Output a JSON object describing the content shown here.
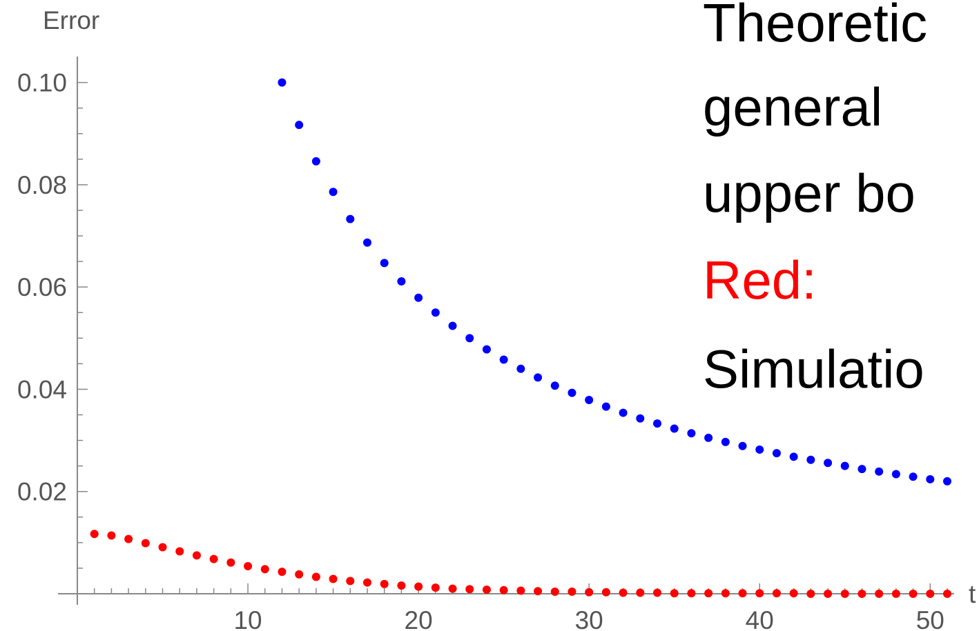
{
  "chart_data": {
    "type": "scatter",
    "title": "",
    "xlabel": "t",
    "ylabel": "Error",
    "xlim": [
      0,
      51
    ],
    "ylim": [
      0,
      0.104
    ],
    "x_ticks": [
      "10",
      "20",
      "30",
      "40",
      "50"
    ],
    "y_ticks": [
      "0.02",
      "0.04",
      "0.06",
      "0.08",
      "0.10"
    ],
    "grid": false,
    "series": [
      {
        "color": "#0000ff",
        "points": [
          [
            12,
            0.1
          ],
          [
            13,
            0.0917
          ],
          [
            14,
            0.0846
          ],
          [
            15,
            0.0786
          ],
          [
            16,
            0.0733
          ],
          [
            17,
            0.0687
          ],
          [
            18,
            0.0647
          ],
          [
            19,
            0.0611
          ],
          [
            20,
            0.0579
          ],
          [
            21,
            0.055
          ],
          [
            22,
            0.0524
          ],
          [
            23,
            0.05
          ],
          [
            24,
            0.0478
          ],
          [
            25,
            0.0458
          ],
          [
            26,
            0.044
          ],
          [
            27,
            0.0423
          ],
          [
            28,
            0.0407
          ],
          [
            29,
            0.0393
          ],
          [
            30,
            0.0379
          ],
          [
            31,
            0.0366
          ],
          [
            32,
            0.0354
          ],
          [
            33,
            0.0343
          ],
          [
            34,
            0.0333
          ],
          [
            35,
            0.0323
          ],
          [
            36,
            0.0314
          ],
          [
            37,
            0.0305
          ],
          [
            38,
            0.0297
          ],
          [
            39,
            0.0289
          ],
          [
            40,
            0.0282
          ],
          [
            41,
            0.0275
          ],
          [
            42,
            0.0268
          ],
          [
            43,
            0.0262
          ],
          [
            44,
            0.0256
          ],
          [
            45,
            0.025
          ],
          [
            46,
            0.0244
          ],
          [
            47,
            0.0239
          ],
          [
            48,
            0.0234
          ],
          [
            49,
            0.0229
          ],
          [
            50,
            0.0224
          ],
          [
            51,
            0.022
          ]
        ]
      },
      {
        "color": "#ff0000",
        "points": [
          [
            1,
            0.0117
          ],
          [
            2,
            0.0114
          ],
          [
            3,
            0.0107
          ],
          [
            4,
            0.0099
          ],
          [
            5,
            0.0091
          ],
          [
            6,
            0.0083
          ],
          [
            7,
            0.0075
          ],
          [
            8,
            0.0068
          ],
          [
            9,
            0.0061
          ],
          [
            10,
            0.0054
          ],
          [
            11,
            0.0048
          ],
          [
            12,
            0.0043
          ],
          [
            13,
            0.0038
          ],
          [
            14,
            0.0033
          ],
          [
            15,
            0.0029
          ],
          [
            16,
            0.0025
          ],
          [
            17,
            0.0022
          ],
          [
            18,
            0.0019
          ],
          [
            19,
            0.0016
          ],
          [
            20,
            0.0014
          ],
          [
            21,
            0.0012
          ],
          [
            22,
            0.001
          ],
          [
            23,
            0.0009
          ],
          [
            24,
            0.0008
          ],
          [
            25,
            0.0007
          ],
          [
            26,
            0.0006
          ],
          [
            27,
            0.0005
          ],
          [
            28,
            0.0004
          ],
          [
            29,
            0.0004
          ],
          [
            30,
            0.0003
          ],
          [
            31,
            0.0003
          ],
          [
            32,
            0.0002
          ],
          [
            33,
            0.0002
          ],
          [
            34,
            0.0002
          ],
          [
            35,
            0.0001
          ],
          [
            36,
            0.0001
          ],
          [
            37,
            0.0001
          ],
          [
            38,
            0.0001
          ],
          [
            39,
            0.0001
          ],
          [
            40,
            0.0001
          ],
          [
            41,
            0.0001
          ],
          [
            42,
            0.0001
          ],
          [
            43,
            0.0
          ],
          [
            44,
            0.0
          ],
          [
            45,
            0.0
          ],
          [
            46,
            0.0
          ],
          [
            47,
            0.0
          ],
          [
            48,
            0.0
          ],
          [
            49,
            0.0
          ],
          [
            50,
            0.0
          ],
          [
            51,
            0.0
          ]
        ]
      }
    ]
  },
  "annotation": {
    "line1": "Theoretic",
    "line2": "general",
    "line3": "upper bo",
    "line4": "Red:",
    "line5": "Simulatio",
    "text_color": "#000000",
    "highlight_color": "#ff0000"
  }
}
